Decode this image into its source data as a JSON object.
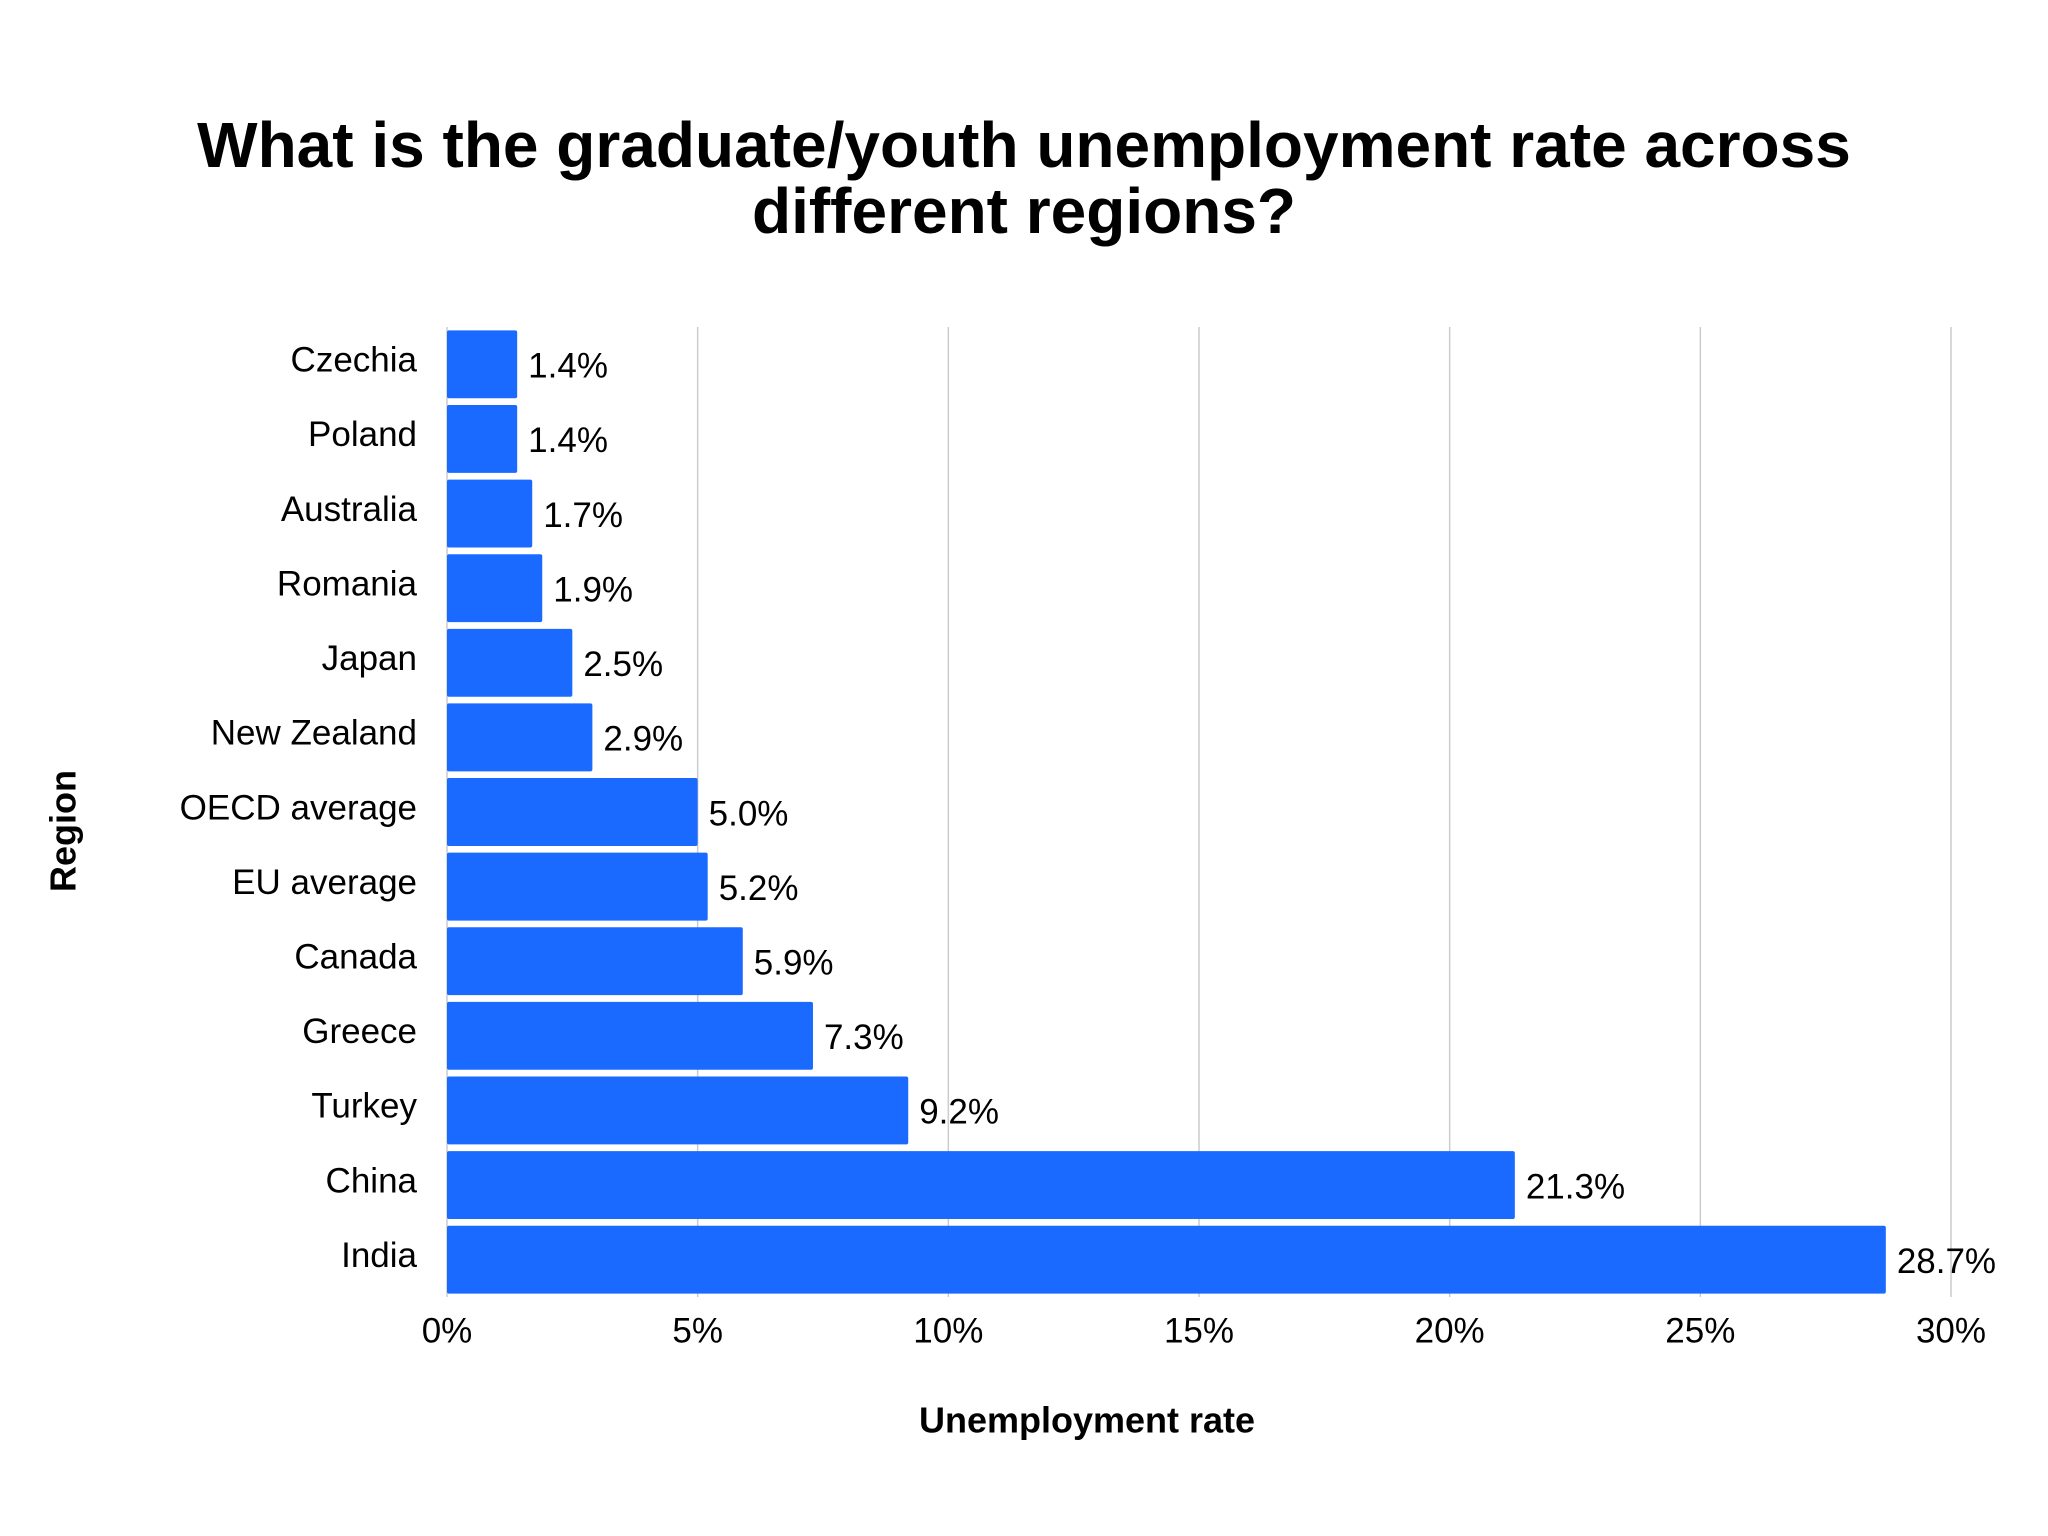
{
  "chart_data": {
    "type": "hbar",
    "title": "What is the graduate/youth unemployment rate across different regions?",
    "x_label": "Unemployment rate",
    "y_label": "Region",
    "categories": [
      "Czechia",
      "Poland",
      "Australia",
      "Romania",
      "Japan",
      "New Zealand",
      "OECD average",
      "EU average",
      "Canada",
      "Greece",
      "Turkey",
      "China",
      "India"
    ],
    "values": [
      1.4,
      1.4,
      1.7,
      1.9,
      2.5,
      2.9,
      5.0,
      5.2,
      5.9,
      7.3,
      9.2,
      21.3,
      28.7
    ],
    "value_labels": [
      "1.4%",
      "1.4%",
      "1.7%",
      "1.9%",
      "2.5%",
      "2.9%",
      "5.0%",
      "5.2%",
      "5.9%",
      "7.3%",
      "9.2%",
      "21.3%",
      "28.7%"
    ],
    "color": "#1a6aff",
    "xlim": [
      0,
      30
    ],
    "xticks": [
      {
        "value": 0,
        "label": "0%"
      },
      {
        "value": 5,
        "label": "5%"
      },
      {
        "value": 10,
        "label": "10%"
      },
      {
        "value": 15,
        "label": "15%"
      },
      {
        "value": 20,
        "label": "20%"
      },
      {
        "value": 25,
        "label": "25%"
      },
      {
        "value": 30,
        "label": "30%"
      }
    ],
    "grid": true
  }
}
